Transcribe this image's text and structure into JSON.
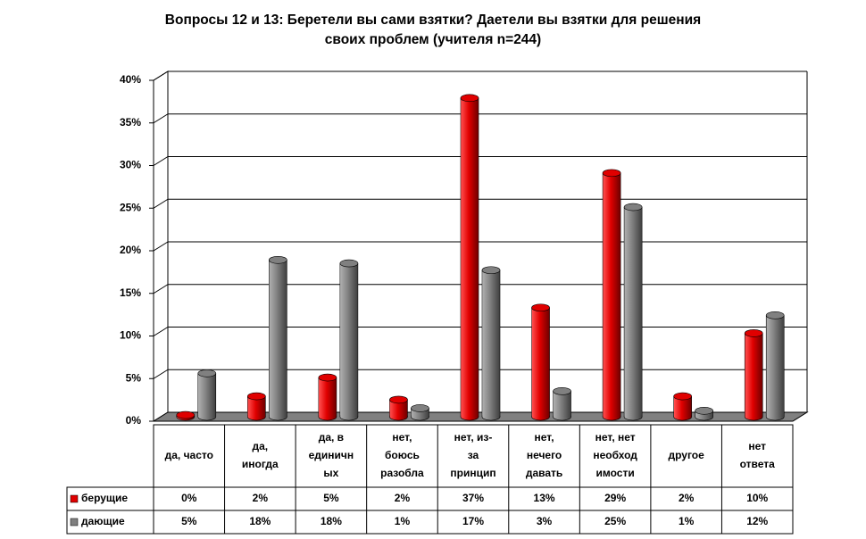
{
  "chart_data": {
    "type": "bar",
    "title": "Вопросы 12 и 13: Беретели вы сами взятки? Даетели вы взятки для решения\nсвоих проблем (учителя n=244)",
    "categories": [
      "да, часто",
      "да,\nиногда",
      "да, в\nединичн\nых",
      "нет,\nбоюсь\nразобла",
      "нет, из-\nза\nпринцип",
      "нет,\nнечего\nдавать",
      "нет, нет\nнеобход\nимости",
      "другое",
      "нет\nответа"
    ],
    "series": [
      {
        "name": "берущие",
        "color": "#e00000",
        "values": [
          0.2,
          2.4,
          4.6,
          2.0,
          37.4,
          12.8,
          28.6,
          2.4,
          9.8
        ],
        "value_labels": [
          "0%",
          "2%",
          "5%",
          "2%",
          "37%",
          "13%",
          "29%",
          "2%",
          "10%"
        ]
      },
      {
        "name": "дающие",
        "color": "#808080",
        "values": [
          5.1,
          18.4,
          18.0,
          1.0,
          17.2,
          3.0,
          24.6,
          0.7,
          11.9
        ],
        "value_labels": [
          "5%",
          "18%",
          "18%",
          "1%",
          "17%",
          "3%",
          "25%",
          "1%",
          "12%"
        ]
      }
    ],
    "ylim": [
      0,
      40
    ],
    "yticks": [
      {
        "value": 0,
        "label": "0%"
      },
      {
        "value": 5,
        "label": "5%"
      },
      {
        "value": 10,
        "label": "10%"
      },
      {
        "value": 15,
        "label": "15%"
      },
      {
        "value": 20,
        "label": "20%"
      },
      {
        "value": 25,
        "label": "25%"
      },
      {
        "value": 30,
        "label": "30%"
      },
      {
        "value": 35,
        "label": "35%"
      },
      {
        "value": 40,
        "label": "40%"
      }
    ],
    "grid": true
  }
}
